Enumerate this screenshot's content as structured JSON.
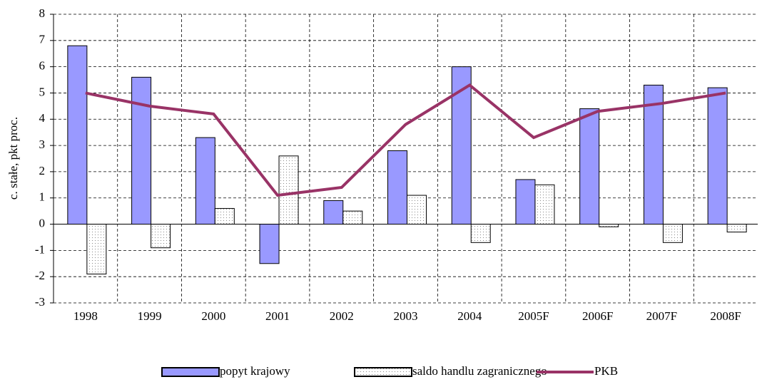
{
  "chart_data": {
    "type": "bar",
    "y_label": "c. stałe, pkt proc.",
    "categories": [
      "1998",
      "1999",
      "2000",
      "2001",
      "2002",
      "2003",
      "2004",
      "2005F",
      "2006F",
      "2007F",
      "2008F"
    ],
    "series": [
      {
        "name": "popyt krajowy",
        "type": "bar",
        "color": "#9999ff",
        "values": [
          6.8,
          5.6,
          3.3,
          -1.5,
          0.9,
          2.8,
          6.0,
          1.7,
          4.4,
          5.3,
          5.2
        ]
      },
      {
        "name": "saldo handlu zagranicznego",
        "type": "bar",
        "color": "#ffffff",
        "values": [
          -1.9,
          -0.9,
          0.6,
          2.6,
          0.5,
          1.1,
          -0.7,
          1.5,
          -0.1,
          -0.7,
          -0.3
        ]
      },
      {
        "name": "PKB",
        "type": "line",
        "color": "#993366",
        "values": [
          5.0,
          4.5,
          4.2,
          1.1,
          1.4,
          3.8,
          5.3,
          3.3,
          4.3,
          4.6,
          5.0
        ]
      }
    ],
    "ylim": [
      -3,
      8
    ],
    "yticks": [
      -3,
      -2,
      -1,
      0,
      1,
      2,
      3,
      4,
      5,
      6,
      7,
      8
    ],
    "grid": true,
    "legend": "bottom"
  }
}
